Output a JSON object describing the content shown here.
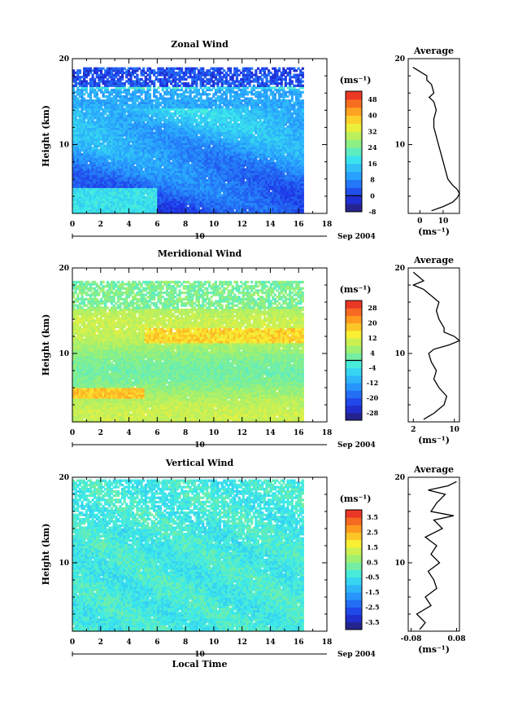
{
  "chart_data": [
    {
      "type": "heatmap",
      "title": "Zonal Wind",
      "xlabel": "",
      "ylabel": "Height (km)",
      "xlim": [
        0,
        18
      ],
      "ylim": [
        2,
        20
      ],
      "xticks": [
        "0",
        "2",
        "4",
        "6",
        "8",
        "10",
        "12",
        "14",
        "16",
        "18"
      ],
      "yticks": [
        "10",
        "20"
      ],
      "date_label": "Sep 2004",
      "day_label": "10",
      "colorbar": {
        "unit": "(ms⁻¹)",
        "min": -8,
        "max": 52,
        "step": 4,
        "labels": [
          "48",
          "40",
          "32",
          "24",
          "16",
          "8",
          "0",
          "-8"
        ],
        "mark_value": 0
      },
      "average": {
        "title": "Average",
        "xlabel": "(ms⁻¹)",
        "xticks": [
          "0",
          "10"
        ],
        "yticks": [
          "10",
          "20"
        ],
        "xlim": [
          -5,
          17
        ],
        "heights": [
          2.3,
          2.8,
          3.3,
          3.8,
          4.3,
          4.8,
          5.3,
          6,
          7,
          8,
          9,
          10,
          11,
          12,
          13,
          14,
          15,
          15.5,
          16,
          17,
          17.5,
          18,
          18.5,
          19
        ],
        "values": [
          5,
          10,
          14,
          16,
          17,
          16,
          14,
          12,
          11,
          10,
          9,
          8,
          7,
          6,
          6,
          7,
          6,
          4,
          6,
          5,
          3,
          3,
          0,
          -3
        ]
      }
    },
    {
      "type": "heatmap",
      "title": "Meridional Wind",
      "xlabel": "",
      "ylabel": "Height (km)",
      "xlim": [
        0,
        18
      ],
      "ylim": [
        2,
        20
      ],
      "xticks": [
        "0",
        "2",
        "4",
        "6",
        "8",
        "10",
        "12",
        "14",
        "16",
        "18"
      ],
      "yticks": [
        "10",
        "20"
      ],
      "date_label": "Sep 2004",
      "day_label": "10",
      "colorbar": {
        "unit": "(ms⁻¹)",
        "min": -32,
        "max": 32,
        "step": 4,
        "labels": [
          "28",
          "20",
          "12",
          "4",
          "-4",
          "-12",
          "-20",
          "-28"
        ],
        "mark_value": 0
      },
      "average": {
        "title": "Average",
        "xlabel": "(ms⁻¹)",
        "xticks": [
          "2",
          "10"
        ],
        "yticks": [
          "10",
          "20"
        ],
        "xlim": [
          1,
          11
        ],
        "heights": [
          2.3,
          3,
          4,
          5,
          6,
          7,
          8,
          9,
          10,
          10.5,
          11,
          11.5,
          12,
          12.5,
          13,
          14,
          15,
          16,
          17,
          17.5,
          18,
          18.5,
          19,
          19.5
        ],
        "values": [
          4,
          6,
          8,
          8.5,
          7,
          6,
          6.5,
          5.5,
          5,
          6,
          9,
          11,
          10,
          8,
          8,
          7,
          6.5,
          7,
          5,
          4,
          2,
          4,
          3,
          2
        ]
      }
    },
    {
      "type": "heatmap",
      "title": "Vertical Wind",
      "xlabel": "Local Time",
      "ylabel": "Height (km)",
      "xlim": [
        0,
        18
      ],
      "ylim": [
        2,
        20
      ],
      "xticks": [
        "0",
        "2",
        "4",
        "6",
        "8",
        "10",
        "12",
        "14",
        "16",
        "18"
      ],
      "yticks": [
        "10",
        "20"
      ],
      "date_label": "Sep 2004",
      "day_label": "10",
      "colorbar": {
        "unit": "(ms⁻¹)",
        "min": -4,
        "max": 4,
        "step": 0.5,
        "labels": [
          "3.5",
          "2.5",
          "1.5",
          "0.5",
          "-0.5",
          "-1.5",
          "-2.5",
          "-3.5"
        ],
        "mark_value": null
      },
      "average": {
        "title": "Average",
        "xlabel": "(ms⁻¹)",
        "xticks": [
          "-0.08",
          "0.08"
        ],
        "yticks": [
          "10",
          "20"
        ],
        "xlim": [
          -0.09,
          0.09
        ],
        "heights": [
          2.2,
          3,
          4,
          5,
          6,
          7,
          8,
          9,
          10,
          11,
          12,
          13,
          14,
          15,
          15.5,
          16,
          17,
          18,
          18.5,
          19,
          19.5
        ],
        "values": [
          -0.05,
          -0.03,
          -0.06,
          -0.01,
          -0.03,
          0.01,
          0.0,
          -0.02,
          0.02,
          -0.01,
          0.01,
          -0.03,
          0.03,
          0.0,
          0.07,
          -0.01,
          0.01,
          0.04,
          -0.02,
          0.05,
          0.08
        ]
      }
    }
  ]
}
